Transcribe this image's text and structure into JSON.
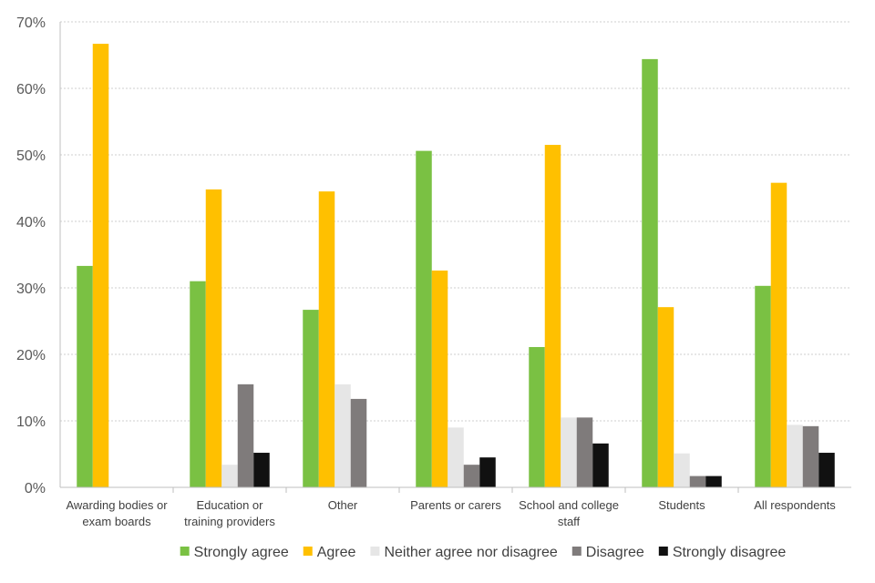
{
  "chart_data": {
    "type": "bar",
    "title": "",
    "xlabel": "",
    "ylabel": "",
    "ylim": [
      0,
      70
    ],
    "y_ticks": [
      "0%",
      "10%",
      "20%",
      "30%",
      "40%",
      "50%",
      "60%",
      "70%"
    ],
    "grid": true,
    "legend_position": "bottom",
    "categories": [
      [
        "Awarding bodies or",
        "exam boards"
      ],
      [
        "Education or",
        "training providers"
      ],
      [
        "Other"
      ],
      [
        "Parents or carers"
      ],
      [
        "School and college",
        "staff"
      ],
      [
        "Students"
      ],
      [
        "All respondents"
      ]
    ],
    "series": [
      {
        "name": "Strongly agree",
        "color": "#7ac143",
        "values": [
          33.3,
          31.0,
          26.7,
          50.6,
          21.1,
          64.4,
          30.3
        ]
      },
      {
        "name": "Agree",
        "color": "#ffc000",
        "values": [
          66.7,
          44.8,
          44.5,
          32.6,
          51.5,
          27.1,
          45.8
        ]
      },
      {
        "name": "Neither agree nor disagree",
        "color": "#e6e6e6",
        "values": [
          0,
          3.4,
          15.5,
          9.0,
          10.5,
          5.1,
          9.4
        ]
      },
      {
        "name": "Disagree",
        "color": "#7f7b7b",
        "values": [
          0,
          15.5,
          13.3,
          3.4,
          10.5,
          1.7,
          9.2
        ]
      },
      {
        "name": "Strongly disagree",
        "color": "#111111",
        "values": [
          0,
          5.2,
          0,
          4.5,
          6.6,
          1.7,
          5.2
        ]
      }
    ]
  }
}
